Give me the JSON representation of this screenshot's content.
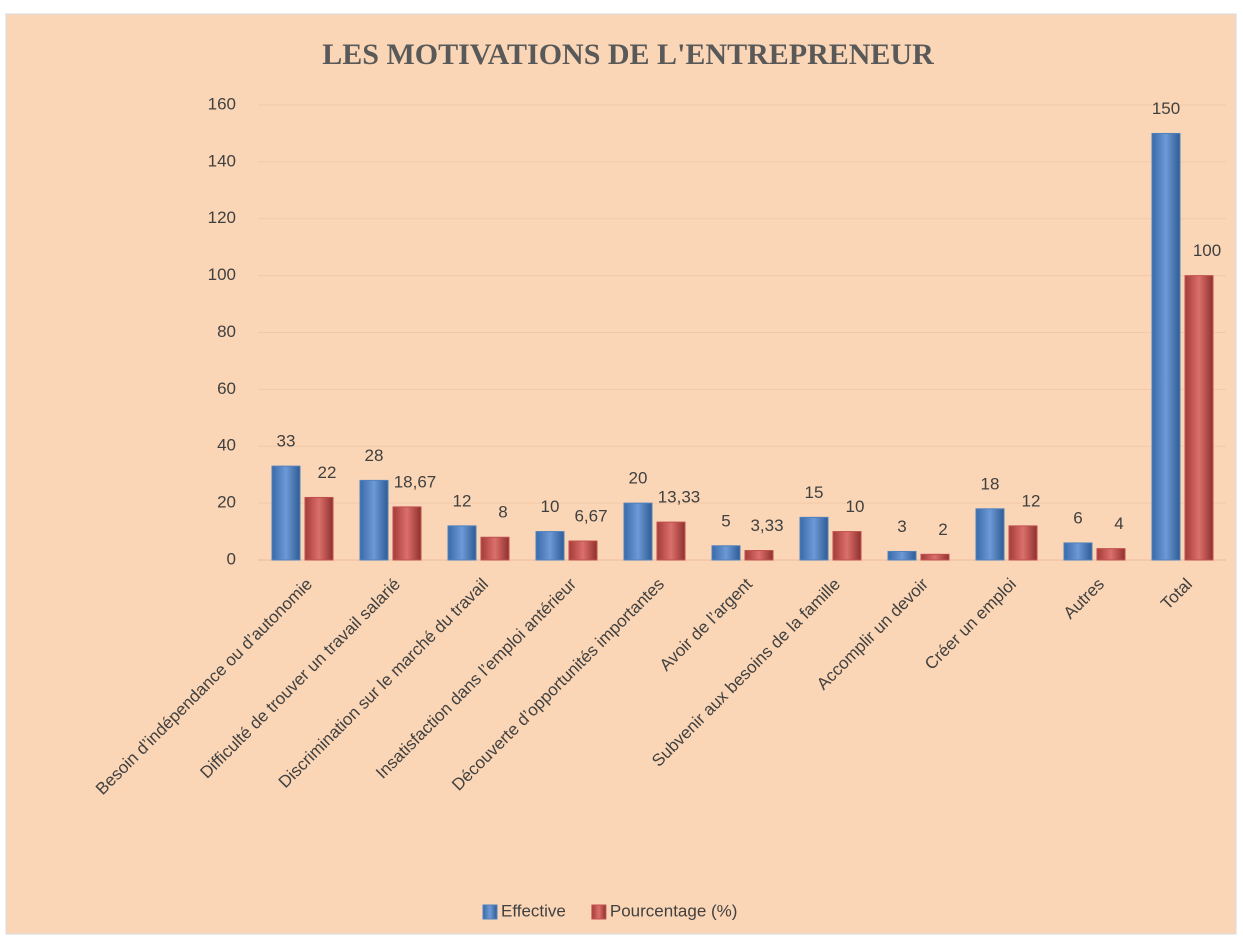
{
  "chart_data": {
    "type": "bar",
    "title": "LES MOTIVATIONS DE L'ENTREPRENEUR",
    "categories": [
      "Besoin d’indépendance ou d’autonomie",
      "Difficulté de trouver un travail salarié",
      "Discrimination sur le marché du travail",
      "Insatisfaction dans l’emploi antérieur",
      "Découverte d’opportunités importantes",
      "Avoir de l’argent",
      "Subvenir aux besoins de la famille",
      "Accomplir un devoir",
      "Créer un emploi",
      "Autres",
      "Total"
    ],
    "series": [
      {
        "name": "Effective",
        "color": "#4f81bd",
        "values": [
          33,
          28,
          12,
          10,
          20,
          5,
          15,
          3,
          18,
          6,
          150
        ]
      },
      {
        "name": "Pourcentage (%)",
        "color": "#c0504d",
        "values": [
          22,
          18.67,
          8,
          6.67,
          13.33,
          3.33,
          10,
          2,
          12,
          4,
          100
        ],
        "value_labels": [
          "22",
          "18,67",
          "8",
          "6,67",
          "13,33",
          "3,33",
          "10",
          "2",
          "12",
          "4",
          "100"
        ]
      }
    ],
    "ylim": [
      0,
      160
    ],
    "yticks": [
      0,
      20,
      40,
      60,
      80,
      100,
      120,
      140,
      160
    ],
    "grid": true,
    "legend": "bottom"
  }
}
